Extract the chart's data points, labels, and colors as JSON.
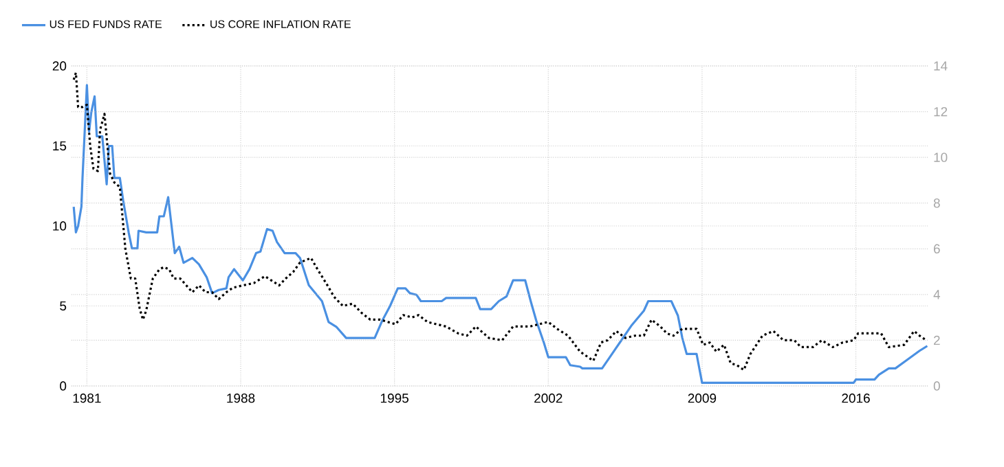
{
  "chart_data": {
    "type": "line",
    "xlim": [
      1980.3,
      2019.3
    ],
    "xticks": [
      1981,
      1988,
      1995,
      2002,
      2009,
      2016
    ],
    "ylim": [
      0,
      20
    ],
    "yticks": [
      0,
      5,
      10,
      15,
      20
    ],
    "y2lim": [
      0,
      14
    ],
    "y2ticks": [
      0,
      2,
      4,
      6,
      8,
      10,
      12,
      14
    ],
    "grid": true,
    "legend": "top left",
    "series": [
      {
        "name": "US FED FUNDS RATE",
        "color": "#4a90e2",
        "line_style": "solid",
        "axis": "y",
        "x": [
          1980.4,
          1980.5,
          1980.6,
          1980.75,
          1980.8,
          1981.0,
          1981.1,
          1981.2,
          1981.35,
          1981.45,
          1981.7,
          1981.9,
          1982.0,
          1982.15,
          1982.25,
          1982.5,
          1982.65,
          1982.9,
          1983.05,
          1983.3,
          1983.35,
          1983.7,
          1984.2,
          1984.3,
          1984.5,
          1984.7,
          1985.0,
          1985.2,
          1985.4,
          1985.8,
          1986.1,
          1986.45,
          1986.7,
          1987.0,
          1987.35,
          1987.45,
          1987.7,
          1988.1,
          1988.4,
          1988.7,
          1988.9,
          1989.2,
          1989.45,
          1989.65,
          1990.0,
          1990.5,
          1990.7,
          1991.1,
          1991.4,
          1991.7,
          1992.0,
          1992.35,
          1992.8,
          1994.1,
          1994.45,
          1994.8,
          1995.15,
          1995.5,
          1995.7,
          1996.0,
          1996.2,
          1997.15,
          1997.35,
          1998.7,
          1998.9,
          1999.4,
          1999.75,
          2000.1,
          2000.4,
          2000.95,
          2001.2,
          2001.45,
          2001.8,
          2002.0,
          2002.8,
          2003.0,
          2003.45,
          2003.55,
          2004.45,
          2004.8,
          2005.3,
          2005.8,
          2006.35,
          2006.55,
          2007.6,
          2007.9,
          2008.1,
          2008.3,
          2008.75,
          2009.0,
          2015.9,
          2016.0,
          2016.85,
          2017.05,
          2017.5,
          2017.8,
          2018.3,
          2018.9,
          2019.25
        ],
        "values": [
          11.2,
          9.6,
          10.0,
          11.2,
          13.0,
          18.8,
          15.9,
          17.1,
          18.1,
          15.6,
          15.6,
          12.6,
          15.0,
          15.0,
          13.0,
          13.0,
          11.6,
          9.6,
          8.6,
          8.6,
          9.7,
          9.6,
          9.6,
          10.6,
          10.6,
          11.8,
          8.3,
          8.7,
          7.7,
          8.0,
          7.6,
          6.8,
          5.8,
          6.0,
          6.1,
          6.8,
          7.3,
          6.6,
          7.3,
          8.3,
          8.4,
          9.8,
          9.7,
          9.0,
          8.3,
          8.3,
          8.0,
          6.3,
          5.8,
          5.3,
          4.0,
          3.7,
          3.0,
          3.0,
          4.1,
          5.0,
          6.1,
          6.1,
          5.8,
          5.7,
          5.3,
          5.3,
          5.5,
          5.5,
          4.8,
          4.8,
          5.3,
          5.6,
          6.6,
          6.6,
          5.3,
          4.1,
          2.7,
          1.8,
          1.8,
          1.3,
          1.2,
          1.1,
          1.1,
          1.8,
          2.8,
          3.8,
          4.7,
          5.3,
          5.3,
          4.4,
          3.0,
          2.0,
          2.0,
          0.2,
          0.2,
          0.4,
          0.4,
          0.7,
          1.1,
          1.1,
          1.6,
          2.2,
          2.5
        ]
      },
      {
        "name": "US CORE INFLATION RATE",
        "color": "#000000",
        "line_style": "dotted",
        "axis": "y2",
        "x": [
          1980.4,
          1980.5,
          1980.6,
          1980.8,
          1981.0,
          1981.15,
          1981.3,
          1981.5,
          1981.6,
          1981.8,
          1982.05,
          1982.25,
          1982.5,
          1982.75,
          1983.0,
          1983.2,
          1983.4,
          1983.55,
          1983.7,
          1984.0,
          1984.3,
          1984.5,
          1984.75,
          1984.95,
          1985.25,
          1985.8,
          1986.1,
          1986.4,
          1986.7,
          1987.0,
          1987.35,
          1987.65,
          1988.1,
          1988.6,
          1989.1,
          1989.75,
          1990.05,
          1990.4,
          1990.7,
          1991.2,
          1991.5,
          1991.95,
          1992.25,
          1992.65,
          1993.1,
          1993.5,
          1993.9,
          1994.35,
          1995.05,
          1995.4,
          1995.8,
          1996.1,
          1996.5,
          1997.35,
          1997.9,
          1998.3,
          1998.7,
          1999.3,
          1999.9,
          2000.4,
          2001.15,
          2002.0,
          2002.4,
          2002.9,
          2003.45,
          2004.05,
          2004.4,
          2004.7,
          2005.1,
          2005.5,
          2005.95,
          2006.35,
          2006.7,
          2007.1,
          2007.4,
          2007.7,
          2008.1,
          2008.75,
          2009.05,
          2009.35,
          2009.65,
          2010.0,
          2010.3,
          2010.6,
          2010.9,
          2011.2,
          2011.75,
          2012.25,
          2012.7,
          2013.2,
          2013.5,
          2014.05,
          2014.45,
          2014.95,
          2015.4,
          2015.9,
          2016.1,
          2016.65,
          2017.15,
          2017.5,
          2018.2,
          2018.65,
          2018.9,
          2019.2
        ],
        "values": [
          13.4,
          13.7,
          12.2,
          12.2,
          12.3,
          10.5,
          9.5,
          9.4,
          11.2,
          11.9,
          9.3,
          8.9,
          8.7,
          6.0,
          4.7,
          4.7,
          3.4,
          2.9,
          3.3,
          4.7,
          5.1,
          5.2,
          5.1,
          4.7,
          4.7,
          4.1,
          4.4,
          4.1,
          4.1,
          3.8,
          4.1,
          4.3,
          4.4,
          4.5,
          4.8,
          4.4,
          4.7,
          5.0,
          5.4,
          5.6,
          5.1,
          4.4,
          3.9,
          3.5,
          3.6,
          3.2,
          2.9,
          2.9,
          2.7,
          3.1,
          3.0,
          3.1,
          2.8,
          2.6,
          2.3,
          2.2,
          2.6,
          2.1,
          2.0,
          2.6,
          2.6,
          2.8,
          2.5,
          2.2,
          1.5,
          1.1,
          1.9,
          2.0,
          2.4,
          2.1,
          2.2,
          2.2,
          2.9,
          2.6,
          2.3,
          2.2,
          2.5,
          2.5,
          1.8,
          1.9,
          1.5,
          1.8,
          1.0,
          0.9,
          0.7,
          1.4,
          2.2,
          2.4,
          2.0,
          2.0,
          1.7,
          1.7,
          2.0,
          1.7,
          1.9,
          2.0,
          2.3,
          2.3,
          2.3,
          1.7,
          1.8,
          2.4,
          2.2,
          2.0
        ]
      }
    ]
  }
}
